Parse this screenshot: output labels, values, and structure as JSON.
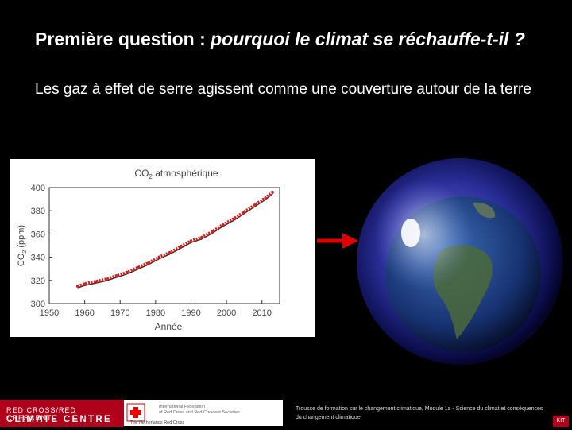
{
  "slide": {
    "title_regular": "Première question : ",
    "title_italic": "pourquoi le climat se réchauffe-t-il ?",
    "subtitle": "Les gaz à effet de serre agissent comme une couverture autour de la terre"
  },
  "chart_data": {
    "type": "line",
    "title_main": "CO",
    "title_sub": "2",
    "title_rest": " atmosphérique",
    "xlabel": "Année",
    "ylabel_main": "CO",
    "ylabel_sub": "2",
    "ylabel_rest": " (ppm)",
    "xlim": [
      1950,
      2015
    ],
    "ylim": [
      300,
      400
    ],
    "x_ticks": [
      "1950",
      "1960",
      "1970",
      "1980",
      "1990",
      "2000",
      "2010"
    ],
    "y_ticks": [
      "300",
      "320",
      "340",
      "360",
      "380",
      "400"
    ],
    "series": [
      {
        "x": [
          1958,
          1960,
          1963,
          1966,
          1969,
          1972,
          1975,
          1978,
          1981,
          1984,
          1987,
          1990,
          1993,
          1996,
          1999,
          2002,
          2005,
          2008,
          2011,
          2013
        ],
        "values": [
          315,
          317,
          319,
          321,
          324,
          327,
          331,
          335,
          340,
          344,
          349,
          354,
          357,
          362,
          368,
          373,
          379,
          385,
          391,
          396
        ]
      }
    ],
    "line_color": "#d42020"
  },
  "logo": {
    "line1": "RED CROSS/RED CRESCENT",
    "line2": "CLIMATE CENTRE",
    "partner_line1": "International Federation",
    "partner_line2": "of Red Cross and Red Crescent Societies",
    "partner_line3": "The Netherlands Red Cross"
  },
  "footer": {
    "note": "Trousse de formation sur le changement climatique, Module 1a - Science du climat et conséquences du changement climatique",
    "badge": "KIT"
  }
}
